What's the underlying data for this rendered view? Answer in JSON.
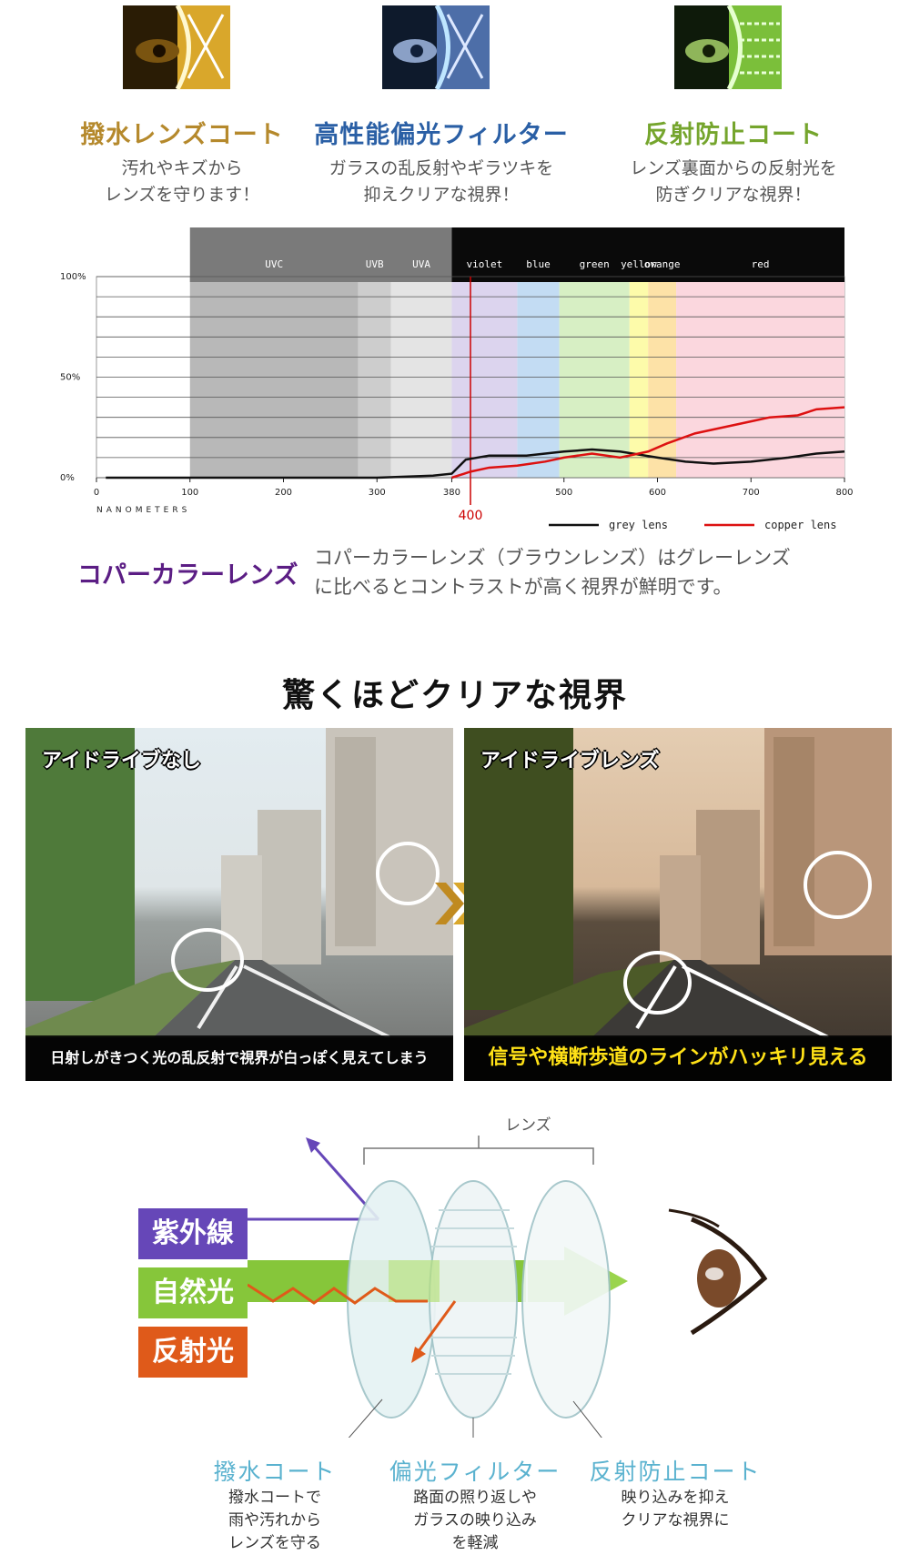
{
  "features": [
    {
      "title": "撥水レンズコート",
      "desc": "汚れやキズから\nレンズを守ります！",
      "color": "#b5892c",
      "icon": "water-repellent-icon"
    },
    {
      "title": "高性能偏光フィルター",
      "desc": "ガラスの乱反射やギラツキを\n抑えクリアな視界！",
      "color": "#2a5fa5",
      "icon": "polarized-filter-icon"
    },
    {
      "title": "反射防止コート",
      "desc": "レンズ裏面からの反射光を\n防ぎクリアな視界！",
      "color": "#75a52d",
      "icon": "anti-reflection-icon"
    }
  ],
  "chart_data": {
    "type": "line",
    "x_ticks": [
      "0",
      "100",
      "200",
      "300",
      "380",
      "500",
      "600",
      "700",
      "800"
    ],
    "y_ticks": [
      "100%",
      "50%",
      "0%"
    ],
    "xlabel": "NANOMETERS",
    "marker_label": "400",
    "bands": [
      {
        "label": "UVC",
        "from": 100,
        "to": 280
      },
      {
        "label": "UVB",
        "from": 280,
        "to": 315
      },
      {
        "label": "UVA",
        "from": 315,
        "to": 380
      },
      {
        "label": "violet",
        "from": 380,
        "to": 450
      },
      {
        "label": "blue",
        "from": 450,
        "to": 495
      },
      {
        "label": "green",
        "from": 495,
        "to": 570
      },
      {
        "label": "yellow",
        "from": 570,
        "to": 590
      },
      {
        "label": "orange",
        "from": 590,
        "to": 620
      },
      {
        "label": "red",
        "from": 620,
        "to": 800
      }
    ],
    "series": [
      {
        "name": "grey lens",
        "color": "#111111",
        "x": [
          10,
          100,
          200,
          300,
          360,
          380,
          395,
          420,
          460,
          500,
          530,
          560,
          600,
          630,
          660,
          700,
          740,
          770,
          800
        ],
        "y": [
          0,
          0,
          0,
          0,
          1,
          2,
          9,
          11,
          11,
          13,
          14,
          13,
          10,
          8,
          7,
          8,
          10,
          12,
          13
        ]
      },
      {
        "name": "copper lens",
        "color": "#dd1111",
        "x": [
          380,
          400,
          420,
          450,
          480,
          500,
          530,
          560,
          590,
          610,
          640,
          670,
          700,
          720,
          750,
          770,
          800
        ],
        "y": [
          0,
          3,
          5,
          6,
          8,
          10,
          12,
          10,
          13,
          17,
          22,
          25,
          28,
          30,
          31,
          34,
          35
        ]
      }
    ],
    "xlim": [
      0,
      800
    ],
    "ylim": [
      0,
      100
    ]
  },
  "copper": {
    "title": "コパーカラーレンズ",
    "desc": "コパーカラーレンズ（ブラウンレンズ）はグレーレンズ\nに比べるとコントラストが高く視界が鮮明です。"
  },
  "section_title": "驚くほどクリアな視界",
  "compare": {
    "left_title": "アイドライブなし",
    "left_caption": "日射しがきつく光の乱反射で視界が白っぽく見えてしまう",
    "right_title": "アイドライブレンズ",
    "right_caption": "信号や横断歩道のラインがハッキリ見える"
  },
  "diagram": {
    "lens_label": "レンズ",
    "rays": [
      {
        "label": "紫外線",
        "color": "#6647b8"
      },
      {
        "label": "自然光",
        "color": "#86c63a"
      },
      {
        "label": "反射光",
        "color": "#df5a1a"
      }
    ],
    "layers": [
      {
        "title": "撥水コート",
        "desc": "撥水コートで\n雨や汚れから\nレンズを守る"
      },
      {
        "title": "偏光フィルター",
        "desc": "路面の照り返しや\nガラスの映り込み\nを軽減"
      },
      {
        "title": "反射防止コート",
        "desc": "映り込みを抑え\nクリアな視界に"
      }
    ]
  }
}
